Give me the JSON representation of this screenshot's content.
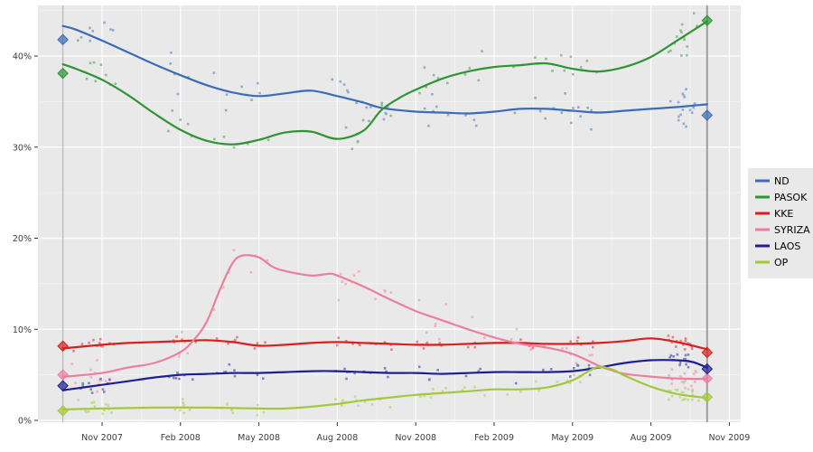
{
  "chart_data": {
    "type": "scatter",
    "subtype": "poll-scatter-with-smoothed-trend",
    "title": "",
    "xlabel": "",
    "ylabel": "",
    "x_unit": "months since Sep 2007",
    "x_tick_months": [
      2,
      5,
      8,
      11,
      14,
      17,
      20,
      23,
      26
    ],
    "x_tick_labels": [
      "Nov 2007",
      "Feb 2008",
      "May 2008",
      "Aug 2008",
      "Nov 2008",
      "Feb 2009",
      "May 2009",
      "Aug 2009",
      "Nov 2009"
    ],
    "y_ticks": [
      0,
      10,
      20,
      30,
      40
    ],
    "y_tick_labels": [
      "0%",
      "10%",
      "20%",
      "30%",
      "40%"
    ],
    "ylim": [
      -0.2,
      45.6
    ],
    "xlim": [
      0.1,
      26.45
    ],
    "grid": {
      "major_color": "#ffffff",
      "minor_color": "rgba(255,255,255,0.55)",
      "panel_bg": "#e9e9e9"
    },
    "axis_text_color": "#3d3d3d",
    "events": [
      {
        "name": "election-sep-2007",
        "month": 0.5,
        "color": "#b9b9b9",
        "width": 1.3
      },
      {
        "name": "election-oct-2009",
        "month": 25.15,
        "color": "#9e9e9e",
        "width": 2
      }
    ],
    "legend": {
      "position": "right",
      "bg": "#e9e9e9",
      "labels": [
        "ND",
        "PASOK",
        "KKE",
        "SYRIZA",
        "LAOS",
        "OP"
      ]
    },
    "scatter_style": {
      "seed": 42,
      "n_dates": 38,
      "n_cluster_dates": 7,
      "point_size": 2.6,
      "opacity": 0.5
    },
    "series": [
      {
        "name": "ND",
        "color": "#3b6cb7",
        "spread": 1.5,
        "election_start": 41.8,
        "election_end": 33.5,
        "trend": [
          [
            0.5,
            43.3
          ],
          [
            1,
            42.9
          ],
          [
            2,
            41.7
          ],
          [
            3,
            40.4
          ],
          [
            4,
            39.1
          ],
          [
            5,
            37.9
          ],
          [
            6,
            36.8
          ],
          [
            7,
            36.0
          ],
          [
            8,
            35.6
          ],
          [
            9,
            35.9
          ],
          [
            10,
            36.2
          ],
          [
            11,
            35.6
          ],
          [
            12,
            34.9
          ],
          [
            12.7,
            34.3
          ],
          [
            14,
            33.9
          ],
          [
            15,
            33.8
          ],
          [
            16,
            33.7
          ],
          [
            17,
            33.9
          ],
          [
            18,
            34.2
          ],
          [
            19,
            34.2
          ],
          [
            20,
            34.0
          ],
          [
            21,
            33.8
          ],
          [
            22,
            34.0
          ],
          [
            23,
            34.2
          ],
          [
            24,
            34.4
          ],
          [
            25.15,
            34.7
          ]
        ]
      },
      {
        "name": "PASOK",
        "color": "#2e9434",
        "spread": 1.6,
        "election_start": 38.1,
        "election_end": 43.9,
        "trend": [
          [
            0.5,
            39.1
          ],
          [
            1,
            38.6
          ],
          [
            2,
            37.4
          ],
          [
            3,
            35.7
          ],
          [
            4,
            33.7
          ],
          [
            5,
            31.9
          ],
          [
            6,
            30.7
          ],
          [
            7,
            30.3
          ],
          [
            8,
            30.8
          ],
          [
            9,
            31.6
          ],
          [
            10,
            31.7
          ],
          [
            11,
            30.9
          ],
          [
            12,
            31.8
          ],
          [
            12.7,
            34.1
          ],
          [
            13.5,
            35.6
          ],
          [
            14,
            36.3
          ],
          [
            15,
            37.5
          ],
          [
            16,
            38.3
          ],
          [
            17,
            38.8
          ],
          [
            18,
            39.0
          ],
          [
            19,
            39.2
          ],
          [
            20,
            38.6
          ],
          [
            21,
            38.3
          ],
          [
            22,
            38.8
          ],
          [
            23,
            39.9
          ],
          [
            24,
            41.7
          ],
          [
            25.15,
            43.8
          ]
        ]
      },
      {
        "name": "KKE",
        "color": "#d81e1e",
        "spread": 0.55,
        "election_start": 8.15,
        "election_end": 7.45,
        "trend": [
          [
            0.5,
            7.9
          ],
          [
            2,
            8.3
          ],
          [
            3,
            8.5
          ],
          [
            4,
            8.6
          ],
          [
            5,
            8.7
          ],
          [
            6,
            8.8
          ],
          [
            7,
            8.6
          ],
          [
            8,
            8.2
          ],
          [
            9,
            8.3
          ],
          [
            10,
            8.5
          ],
          [
            11,
            8.6
          ],
          [
            12,
            8.5
          ],
          [
            13,
            8.4
          ],
          [
            14,
            8.3
          ],
          [
            15,
            8.3
          ],
          [
            16,
            8.4
          ],
          [
            17,
            8.5
          ],
          [
            18,
            8.5
          ],
          [
            19,
            8.4
          ],
          [
            20,
            8.4
          ],
          [
            21,
            8.5
          ],
          [
            22,
            8.7
          ],
          [
            23,
            9.0
          ],
          [
            24,
            8.6
          ],
          [
            25.15,
            7.8
          ]
        ]
      },
      {
        "name": "SYRIZA",
        "color": "#ec7f9d",
        "spread": 1.3,
        "spread_boost": {
          "from": 5,
          "to": 11.5,
          "factor": 1.6
        },
        "election_start": 5.0,
        "election_end": 4.6,
        "trend": [
          [
            0.5,
            4.8
          ],
          [
            1,
            4.9
          ],
          [
            2,
            5.2
          ],
          [
            3,
            5.8
          ],
          [
            4,
            6.3
          ],
          [
            5,
            7.5
          ],
          [
            5.5,
            8.8
          ],
          [
            6,
            10.8
          ],
          [
            6.5,
            14.3
          ],
          [
            7,
            17.3
          ],
          [
            7.4,
            18.1
          ],
          [
            8,
            17.9
          ],
          [
            8.5,
            16.9
          ],
          [
            9,
            16.4
          ],
          [
            10,
            15.9
          ],
          [
            10.7,
            16.1
          ],
          [
            11,
            15.9
          ],
          [
            12,
            14.7
          ],
          [
            13,
            13.3
          ],
          [
            14,
            12.0
          ],
          [
            15,
            11.0
          ],
          [
            16,
            10.0
          ],
          [
            17,
            9.1
          ],
          [
            18,
            8.4
          ],
          [
            19,
            8.0
          ],
          [
            20,
            7.3
          ],
          [
            21,
            6.0
          ],
          [
            21.5,
            5.5
          ],
          [
            22,
            5.1
          ],
          [
            23,
            4.8
          ],
          [
            24,
            4.6
          ],
          [
            25.15,
            4.55
          ]
        ]
      },
      {
        "name": "LAOS",
        "color": "#1e1e96",
        "spread": 0.7,
        "election_start": 3.8,
        "election_end": 5.65,
        "trend": [
          [
            0.5,
            3.3
          ],
          [
            1,
            3.5
          ],
          [
            2,
            3.9
          ],
          [
            3,
            4.3
          ],
          [
            4,
            4.7
          ],
          [
            5,
            5.0
          ],
          [
            6,
            5.1
          ],
          [
            7,
            5.2
          ],
          [
            8,
            5.2
          ],
          [
            9,
            5.3
          ],
          [
            10,
            5.4
          ],
          [
            11,
            5.4
          ],
          [
            12,
            5.3
          ],
          [
            13,
            5.2
          ],
          [
            14,
            5.2
          ],
          [
            15,
            5.1
          ],
          [
            16,
            5.2
          ],
          [
            17,
            5.3
          ],
          [
            18,
            5.3
          ],
          [
            19,
            5.3
          ],
          [
            20,
            5.4
          ],
          [
            21,
            5.8
          ],
          [
            22,
            6.3
          ],
          [
            23,
            6.6
          ],
          [
            24,
            6.6
          ],
          [
            24.6,
            6.4
          ],
          [
            25.15,
            5.8
          ]
        ]
      },
      {
        "name": "OP",
        "color": "#a4c83b",
        "spread": 0.55,
        "election_start": 1.05,
        "election_end": 2.55,
        "trend": [
          [
            0.5,
            1.2
          ],
          [
            2,
            1.3
          ],
          [
            4,
            1.4
          ],
          [
            6,
            1.4
          ],
          [
            8,
            1.3
          ],
          [
            9,
            1.3
          ],
          [
            10,
            1.5
          ],
          [
            11,
            1.8
          ],
          [
            12,
            2.2
          ],
          [
            13,
            2.5
          ],
          [
            14,
            2.8
          ],
          [
            15,
            3.0
          ],
          [
            16,
            3.2
          ],
          [
            17,
            3.4
          ],
          [
            18,
            3.4
          ],
          [
            19,
            3.6
          ],
          [
            20,
            4.4
          ],
          [
            20.9,
            5.8
          ],
          [
            21.5,
            5.6
          ],
          [
            22,
            4.9
          ],
          [
            23,
            3.7
          ],
          [
            24,
            2.9
          ],
          [
            25.15,
            2.45
          ]
        ]
      }
    ]
  }
}
